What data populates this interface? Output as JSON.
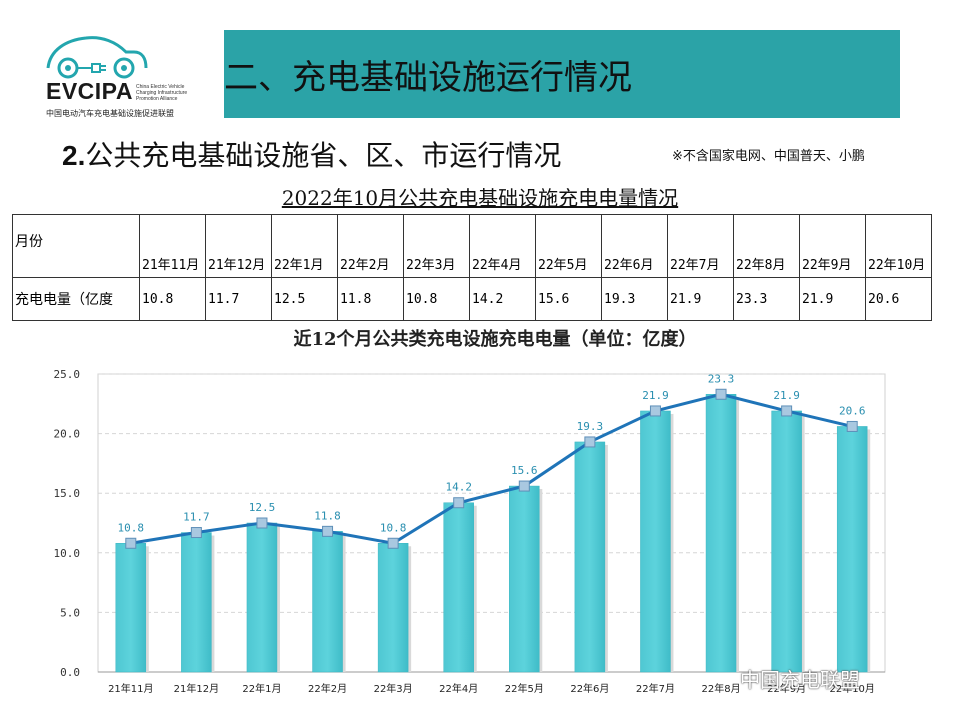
{
  "logo": {
    "name": "EVCIPA",
    "subtitle_en": "China Electric Vehicle Charging Infrastructure Promotion Alliance",
    "subtitle_cn": "中国电动汽车充电基础设施促进联盟"
  },
  "header": {
    "title": "二、充电基础设施运行情况"
  },
  "section": {
    "number": "2.",
    "title": "公共充电基础设施省、区、市运行情况",
    "note": "※不含国家电网、中国普天、小鹏"
  },
  "table": {
    "title": "2022年10月公共充电基础设施充电电量情况",
    "row_header_month": "月份",
    "row_header_value": "充电电量（亿度",
    "months": [
      "21年11月",
      "21年12月",
      "22年1月",
      "22年2月",
      "22年3月",
      "22年4月",
      "22年5月",
      "22年6月",
      "22年7月",
      "22年8月",
      "22年9月",
      "22年10月"
    ],
    "values": [
      "10.8",
      "11.7",
      "12.5",
      "11.8",
      "10.8",
      "14.2",
      "15.6",
      "19.3",
      "21.9",
      "23.3",
      "21.9",
      "20.6"
    ]
  },
  "chart_data": {
    "type": "bar",
    "title": "近12个月公共类充电设施充电电量（单位：亿度）",
    "categories": [
      "21年11月",
      "21年12月",
      "22年1月",
      "22年2月",
      "22年3月",
      "22年4月",
      "22年5月",
      "22年6月",
      "22年7月",
      "22年8月",
      "22年9月",
      "22年10月"
    ],
    "series": [
      {
        "name": "充电电量",
        "kind": "bar",
        "values": [
          10.8,
          11.7,
          12.5,
          11.8,
          10.8,
          14.2,
          15.6,
          19.3,
          21.9,
          23.3,
          21.9,
          20.6
        ]
      },
      {
        "name": "充电电量",
        "kind": "line",
        "values": [
          10.8,
          11.7,
          12.5,
          11.8,
          10.8,
          14.2,
          15.6,
          19.3,
          21.9,
          23.3,
          21.9,
          20.6
        ]
      }
    ],
    "data_labels": [
      "10.8",
      "11.7",
      "12.5",
      "11.8",
      "10.8",
      "14.2",
      "15.6",
      "19.3",
      "21.9",
      "23.3",
      "21.9",
      "20.6"
    ],
    "y_ticks": [
      "0.0",
      "5.0",
      "10.0",
      "15.0",
      "20.0",
      "25.0"
    ],
    "ylim": [
      0,
      25
    ],
    "xlabel": "",
    "ylabel": "",
    "grid": true,
    "colors": {
      "bar": "#5dd3dc",
      "bar_edge": "#3bb6c2",
      "line": "#1f74b8",
      "marker": "#a9c8e0"
    }
  },
  "watermark": {
    "text": "中国充电联盟"
  }
}
